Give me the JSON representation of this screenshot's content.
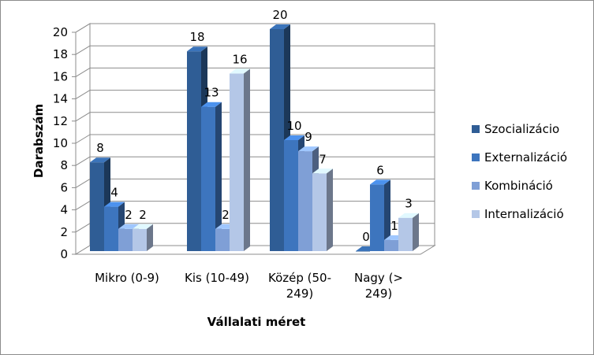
{
  "chart_data": {
    "type": "bar",
    "variant": "3d-clustered-column",
    "xlabel": "Vállalati méret",
    "ylabel": "Darabszám",
    "ylim": [
      0,
      20
    ],
    "yticks": [
      0,
      2,
      4,
      6,
      8,
      10,
      12,
      14,
      16,
      18,
      20
    ],
    "grid": true,
    "legend_position": "right",
    "categories": [
      [
        "Mikro (0-9)"
      ],
      [
        "Kis (10-49)"
      ],
      [
        "Közép (50-",
        "249)"
      ],
      [
        "Nagy (>",
        "249)"
      ]
    ],
    "series": [
      {
        "name": "Szocializácio",
        "values": [
          8,
          18,
          20,
          0
        ],
        "color": "#2f5d95"
      },
      {
        "name": "Externalizáció",
        "values": [
          4,
          13,
          10,
          6
        ],
        "color": "#3d75be"
      },
      {
        "name": "Kombináció",
        "values": [
          2,
          2,
          9,
          1
        ],
        "color": "#7f9fd6"
      },
      {
        "name": "Internalizáció",
        "values": [
          2,
          16,
          7,
          3
        ],
        "color": "#b4c7e7"
      }
    ]
  }
}
